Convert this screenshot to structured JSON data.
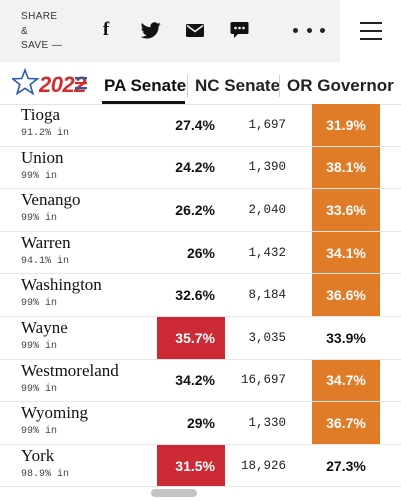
{
  "share": {
    "line1": "SHARE",
    "line2": "&",
    "line3": "SAVE —"
  },
  "icons": {
    "facebook": "facebook-icon",
    "twitter": "twitter-icon",
    "mail": "mail-icon",
    "comment": "comment-icon",
    "more": "more-dots-icon",
    "menu": "hamburger-menu-icon",
    "logo_star": "star-logo-icon"
  },
  "facebook_glyph": "f",
  "logo_text": "2022",
  "tabs": [
    {
      "label": "PA Senate"
    },
    {
      "label": "NC Senate"
    },
    {
      "label": "OR Governor"
    }
  ],
  "colors": {
    "dem": "#cc2a35",
    "rep": "#e07b28",
    "logo_red": "#d42b2b",
    "logo_blue": "#2c5ca8"
  },
  "rows": [
    {
      "county": "Tioga",
      "reporting": "91.2% in",
      "dem": "27.4%",
      "votes": "1,697",
      "rep": "31.9%",
      "winner": "rep"
    },
    {
      "county": "Union",
      "reporting": "99% in",
      "dem": "24.2%",
      "votes": "1,390",
      "rep": "38.1%",
      "winner": "rep"
    },
    {
      "county": "Venango",
      "reporting": "99% in",
      "dem": "26.2%",
      "votes": "2,040",
      "rep": "33.6%",
      "winner": "rep"
    },
    {
      "county": "Warren",
      "reporting": "94.1% in",
      "dem": "26%",
      "votes": "1,432",
      "rep": "34.1%",
      "winner": "rep"
    },
    {
      "county": "Washington",
      "reporting": "99% in",
      "dem": "32.6%",
      "votes": "8,184",
      "rep": "36.6%",
      "winner": "rep"
    },
    {
      "county": "Wayne",
      "reporting": "99% in",
      "dem": "35.7%",
      "votes": "3,035",
      "rep": "33.9%",
      "winner": "dem"
    },
    {
      "county": "Westmoreland",
      "reporting": "99% in",
      "dem": "34.2%",
      "votes": "16,697",
      "rep": "34.7%",
      "winner": "rep"
    },
    {
      "county": "Wyoming",
      "reporting": "99% in",
      "dem": "29%",
      "votes": "1,330",
      "rep": "36.7%",
      "winner": "rep"
    },
    {
      "county": "York",
      "reporting": "98.9% in",
      "dem": "31.5%",
      "votes": "18,926",
      "rep": "27.3%",
      "winner": "dem"
    }
  ]
}
